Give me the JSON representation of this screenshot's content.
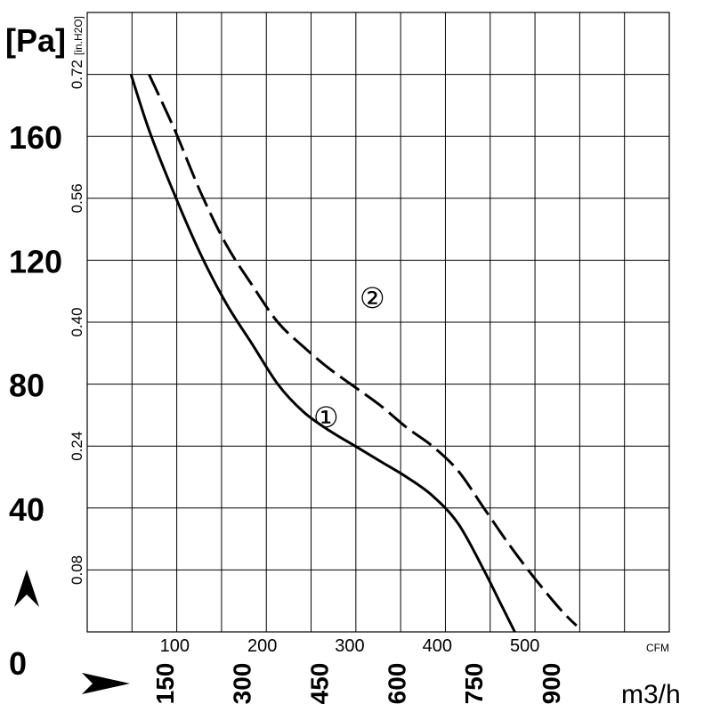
{
  "chart_data": {
    "type": "line",
    "y_left_unit": "[Pa]",
    "y_right_unit": "[in.H2O]",
    "x_top_unit": "CFM",
    "x_bottom_unit": "m3/h",
    "y_pa_ticks": [
      "0",
      "40",
      "80",
      "120",
      "160"
    ],
    "y_pa_tick_values": [
      0,
      40,
      80,
      120,
      160
    ],
    "y_inh2o_ticks": [
      "0.08",
      "0.24",
      "0.40",
      "0.56",
      "0.72"
    ],
    "y_inh2o_tick_values_pa": [
      20,
      60,
      100,
      140,
      180
    ],
    "x_cfm_ticks": [
      "100",
      "200",
      "300",
      "400",
      "500"
    ],
    "x_cfm_tick_values": [
      100,
      200,
      300,
      400,
      500
    ],
    "x_m3h_ticks": [
      "150",
      "300",
      "450",
      "600",
      "750",
      "900"
    ],
    "x_m3h_tick_values": [
      150,
      300,
      450,
      600,
      750,
      900
    ],
    "xlim_m3h": [
      0,
      1130
    ],
    "ylim_pa": [
      0,
      200
    ],
    "grid": true,
    "series": [
      {
        "name": "①",
        "style": "solid",
        "x": [
          85,
          120,
          170,
          220,
          270,
          320,
          370,
          420,
          470,
          520,
          570,
          620,
          670,
          720,
          770,
          800,
          830,
          860,
          890
        ],
        "y": [
          180,
          162,
          141,
          122,
          106,
          93,
          80,
          71,
          65,
          60,
          55,
          50,
          44,
          35,
          20,
          10,
          0,
          0,
          0
        ]
      },
      {
        "name": "②",
        "style": "dashed",
        "x": [
          120,
          170,
          220,
          270,
          320,
          370,
          420,
          470,
          520,
          570,
          620,
          670,
          720,
          770,
          820,
          870,
          920,
          950
        ],
        "y": [
          180,
          162,
          142,
          125,
          112,
          100,
          92,
          85,
          79,
          73,
          66,
          60,
          52,
          40,
          28,
          17,
          7,
          2
        ]
      }
    ]
  }
}
